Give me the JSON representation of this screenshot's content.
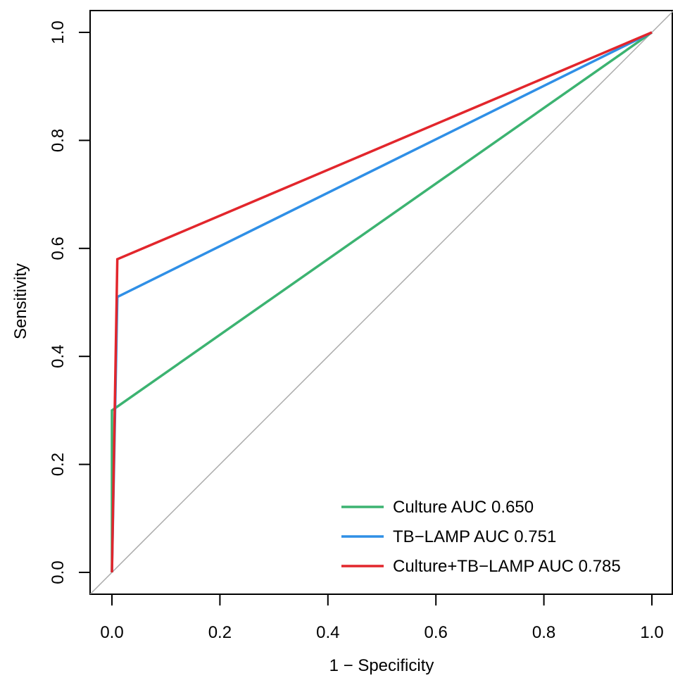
{
  "chart_data": {
    "type": "line",
    "title": "",
    "xlabel": "1 − Specificity",
    "ylabel": "Sensitivity",
    "xlim": [
      -0.04,
      1.04
    ],
    "ylim": [
      -0.04,
      1.04
    ],
    "x_ticks": [
      0.0,
      0.2,
      0.4,
      0.6,
      0.8,
      1.0
    ],
    "x_tick_labels": [
      "0.0",
      "0.2",
      "0.4",
      "0.6",
      "0.8",
      "1.0"
    ],
    "y_ticks": [
      0.0,
      0.2,
      0.4,
      0.6,
      0.8,
      1.0
    ],
    "y_tick_labels": [
      "0.0",
      "0.2",
      "0.4",
      "0.6",
      "0.8",
      "1.0"
    ],
    "grid": false,
    "legend_position": "bottom-right",
    "reference_line": {
      "x": [
        -0.04,
        1.04
      ],
      "y": [
        -0.04,
        1.04
      ],
      "color": "#aaaaaa"
    },
    "series": [
      {
        "name": "Culture AUC 0.650",
        "color": "#3cb371",
        "x": [
          0.0,
          0.0,
          1.0
        ],
        "y": [
          0.0,
          0.3,
          1.0
        ]
      },
      {
        "name": "TB−LAMP AUC 0.751",
        "color": "#2f8fe6",
        "x": [
          0.0,
          0.01,
          1.0
        ],
        "y": [
          0.0,
          0.51,
          1.0
        ]
      },
      {
        "name": "Culture+TB−LAMP AUC 0.785",
        "color": "#e2262c",
        "x": [
          0.0,
          0.01,
          1.0
        ],
        "y": [
          0.0,
          0.58,
          1.0
        ]
      }
    ]
  }
}
